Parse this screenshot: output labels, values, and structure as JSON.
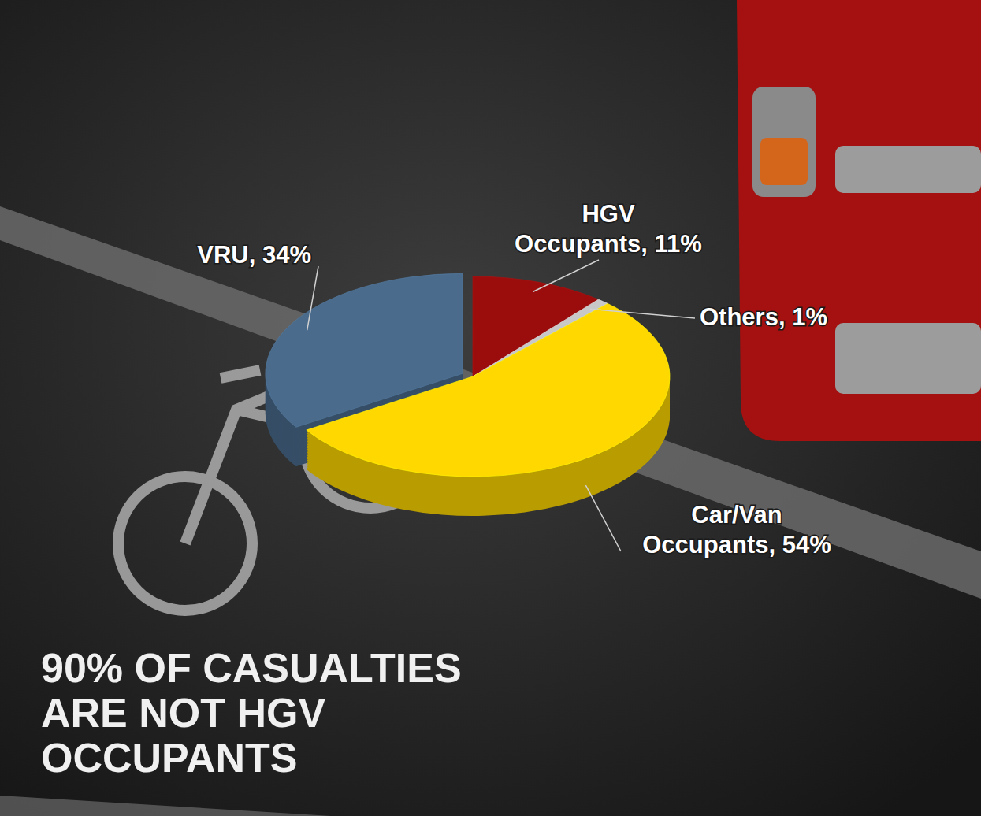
{
  "chart_data": {
    "type": "pie",
    "categories": [
      "VRU",
      "HGV Occupants",
      "Others",
      "Car/Van Occupants"
    ],
    "values": [
      34,
      11,
      1,
      54
    ],
    "value_labels": [
      "VRU, 34%",
      "HGV Occupants, 11%",
      "Others, 1%",
      "Car/Van Occupants, 54%"
    ],
    "colors": [
      "#4a6b8c",
      "#9b0d0d",
      "#c8c8c8",
      "#ffd800"
    ],
    "data_labels": true,
    "annotation": "90% OF CASUALTIES ARE NOT HGV OCCUPANTS"
  }
}
